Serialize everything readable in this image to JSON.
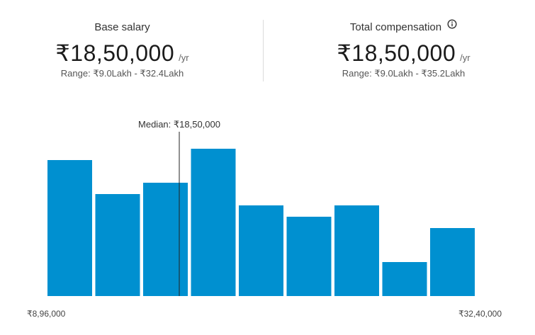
{
  "base_salary": {
    "label": "Base salary",
    "value": "₹18,50,000",
    "unit": "/yr",
    "range": "Range: ₹9.0Lakh - ₹32.4Lakh"
  },
  "total_compensation": {
    "label": "Total compensation",
    "value": "₹18,50,000",
    "unit": "/yr",
    "range": "Range: ₹9.0Lakh - ₹35.2Lakh",
    "icon": "info-icon"
  },
  "chart_data": {
    "type": "bar",
    "bar_color": "#0090d0",
    "values": [
      12,
      9,
      10,
      13,
      8,
      7,
      8,
      3,
      6
    ],
    "ylim": [
      0,
      13
    ],
    "x_min_label": "₹8,96,000",
    "x_max_label": "₹32,40,000",
    "median_label": "Median: ₹18,50,000",
    "median_value": 1850000,
    "x_range": [
      896000,
      3240000
    ],
    "grid": false
  }
}
